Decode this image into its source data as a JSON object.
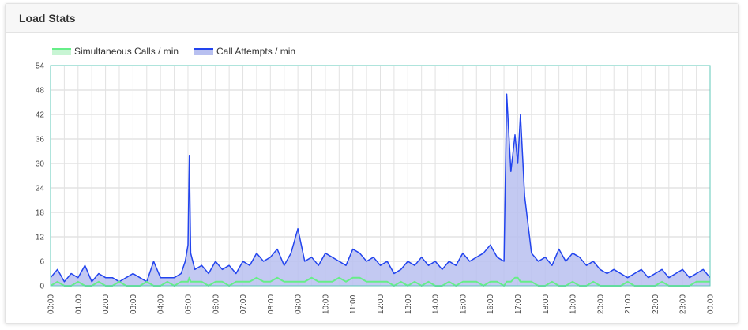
{
  "panel": {
    "title": "Load Stats"
  },
  "chart_data": {
    "type": "area",
    "title": "",
    "xlabel": "",
    "ylabel": "",
    "ylim": [
      0,
      54
    ],
    "y_ticks": [
      0,
      6,
      12,
      18,
      24,
      30,
      36,
      42,
      48,
      54
    ],
    "x_tick_labels": [
      "00:00",
      "01:00",
      "02:00",
      "03:00",
      "04:00",
      "05:00",
      "06:00",
      "07:00",
      "08:00",
      "09:00",
      "10:00",
      "11:00",
      "12:00",
      "13:00",
      "14:00",
      "15:00",
      "16:00",
      "17:00",
      "18:00",
      "19:00",
      "20:00",
      "21:00",
      "22:00",
      "23:00",
      "00:00"
    ],
    "grid": true,
    "legend_position": "top-left",
    "x_hours": [
      0,
      0.25,
      0.5,
      0.75,
      1,
      1.25,
      1.5,
      1.75,
      2,
      2.25,
      2.5,
      2.75,
      3,
      3.25,
      3.5,
      3.75,
      4,
      4.25,
      4.5,
      4.75,
      4.9,
      5,
      5.05,
      5.1,
      5.25,
      5.5,
      5.75,
      6,
      6.25,
      6.5,
      6.75,
      7,
      7.25,
      7.5,
      7.75,
      8,
      8.25,
      8.5,
      8.75,
      9,
      9.25,
      9.5,
      9.75,
      10,
      10.25,
      10.5,
      10.75,
      11,
      11.25,
      11.5,
      11.75,
      12,
      12.25,
      12.5,
      12.75,
      13,
      13.25,
      13.5,
      13.75,
      14,
      14.25,
      14.5,
      14.75,
      15,
      15.25,
      15.5,
      15.75,
      16,
      16.25,
      16.5,
      16.6,
      16.75,
      16.9,
      17,
      17.1,
      17.25,
      17.5,
      17.75,
      18,
      18.25,
      18.5,
      18.75,
      19,
      19.25,
      19.5,
      19.75,
      20,
      20.25,
      20.5,
      20.75,
      21,
      21.25,
      21.5,
      21.75,
      22,
      22.25,
      22.5,
      22.75,
      23,
      23.25,
      23.5,
      23.75,
      24
    ],
    "series": [
      {
        "name": "Simultaneous Calls / min",
        "color": "#66ee88",
        "values": [
          0,
          1,
          0,
          0,
          1,
          0,
          0,
          1,
          0,
          0,
          1,
          0,
          0,
          0,
          1,
          0,
          0,
          1,
          0,
          1,
          1,
          1,
          2,
          1,
          1,
          1,
          0,
          1,
          1,
          0,
          1,
          1,
          1,
          2,
          1,
          1,
          2,
          1,
          1,
          1,
          1,
          2,
          1,
          1,
          1,
          2,
          1,
          2,
          2,
          1,
          1,
          1,
          1,
          0,
          1,
          0,
          1,
          0,
          1,
          0,
          0,
          1,
          0,
          1,
          1,
          1,
          0,
          1,
          1,
          0,
          1,
          1,
          2,
          2,
          1,
          1,
          1,
          0,
          0,
          1,
          0,
          0,
          1,
          0,
          0,
          1,
          0,
          0,
          0,
          0,
          1,
          0,
          0,
          0,
          0,
          1,
          0,
          0,
          0,
          0,
          1,
          1,
          1
        ]
      },
      {
        "name": "Call Attempts / min",
        "color": "#2244ee",
        "fill": "#b8c0f0",
        "values": [
          2,
          4,
          1,
          3,
          2,
          5,
          1,
          3,
          2,
          2,
          1,
          2,
          3,
          2,
          1,
          6,
          2,
          2,
          2,
          3,
          6,
          10,
          32,
          8,
          4,
          5,
          3,
          6,
          4,
          5,
          3,
          6,
          5,
          8,
          6,
          7,
          9,
          5,
          8,
          14,
          6,
          7,
          5,
          8,
          7,
          6,
          5,
          9,
          8,
          6,
          7,
          5,
          6,
          3,
          4,
          6,
          5,
          7,
          5,
          6,
          4,
          6,
          5,
          8,
          6,
          7,
          8,
          10,
          7,
          6,
          47,
          28,
          37,
          30,
          42,
          22,
          8,
          6,
          7,
          5,
          9,
          6,
          8,
          7,
          5,
          6,
          4,
          3,
          4,
          3,
          2,
          3,
          4,
          2,
          3,
          4,
          2,
          3,
          4,
          2,
          3,
          4,
          2
        ]
      }
    ]
  }
}
